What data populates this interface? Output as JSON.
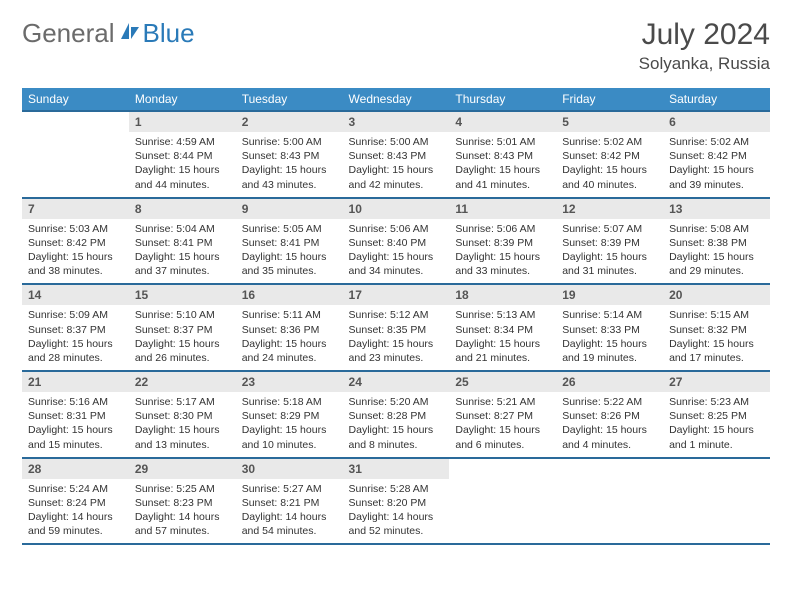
{
  "logo": {
    "word1": "General",
    "word2": "Blue"
  },
  "title": "July 2024",
  "location": "Solyanka, Russia",
  "weekdays": [
    "Sunday",
    "Monday",
    "Tuesday",
    "Wednesday",
    "Thursday",
    "Friday",
    "Saturday"
  ],
  "colors": {
    "header_bg": "#3b8bc4",
    "header_text": "#ffffff",
    "row_border": "#2a6a9a",
    "daynum_bg": "#e9e9e9",
    "logo_grey": "#6b6b6b",
    "logo_blue": "#2a7ab8",
    "text": "#333333"
  },
  "grid": {
    "rows": 5,
    "cols": 7,
    "first_weekday_index": 1,
    "days_in_month": 31
  },
  "days": {
    "1": {
      "sunrise": "4:59 AM",
      "sunset": "8:44 PM",
      "daylight": "15 hours and 44 minutes."
    },
    "2": {
      "sunrise": "5:00 AM",
      "sunset": "8:43 PM",
      "daylight": "15 hours and 43 minutes."
    },
    "3": {
      "sunrise": "5:00 AM",
      "sunset": "8:43 PM",
      "daylight": "15 hours and 42 minutes."
    },
    "4": {
      "sunrise": "5:01 AM",
      "sunset": "8:43 PM",
      "daylight": "15 hours and 41 minutes."
    },
    "5": {
      "sunrise": "5:02 AM",
      "sunset": "8:42 PM",
      "daylight": "15 hours and 40 minutes."
    },
    "6": {
      "sunrise": "5:02 AM",
      "sunset": "8:42 PM",
      "daylight": "15 hours and 39 minutes."
    },
    "7": {
      "sunrise": "5:03 AM",
      "sunset": "8:42 PM",
      "daylight": "15 hours and 38 minutes."
    },
    "8": {
      "sunrise": "5:04 AM",
      "sunset": "8:41 PM",
      "daylight": "15 hours and 37 minutes."
    },
    "9": {
      "sunrise": "5:05 AM",
      "sunset": "8:41 PM",
      "daylight": "15 hours and 35 minutes."
    },
    "10": {
      "sunrise": "5:06 AM",
      "sunset": "8:40 PM",
      "daylight": "15 hours and 34 minutes."
    },
    "11": {
      "sunrise": "5:06 AM",
      "sunset": "8:39 PM",
      "daylight": "15 hours and 33 minutes."
    },
    "12": {
      "sunrise": "5:07 AM",
      "sunset": "8:39 PM",
      "daylight": "15 hours and 31 minutes."
    },
    "13": {
      "sunrise": "5:08 AM",
      "sunset": "8:38 PM",
      "daylight": "15 hours and 29 minutes."
    },
    "14": {
      "sunrise": "5:09 AM",
      "sunset": "8:37 PM",
      "daylight": "15 hours and 28 minutes."
    },
    "15": {
      "sunrise": "5:10 AM",
      "sunset": "8:37 PM",
      "daylight": "15 hours and 26 minutes."
    },
    "16": {
      "sunrise": "5:11 AM",
      "sunset": "8:36 PM",
      "daylight": "15 hours and 24 minutes."
    },
    "17": {
      "sunrise": "5:12 AM",
      "sunset": "8:35 PM",
      "daylight": "15 hours and 23 minutes."
    },
    "18": {
      "sunrise": "5:13 AM",
      "sunset": "8:34 PM",
      "daylight": "15 hours and 21 minutes."
    },
    "19": {
      "sunrise": "5:14 AM",
      "sunset": "8:33 PM",
      "daylight": "15 hours and 19 minutes."
    },
    "20": {
      "sunrise": "5:15 AM",
      "sunset": "8:32 PM",
      "daylight": "15 hours and 17 minutes."
    },
    "21": {
      "sunrise": "5:16 AM",
      "sunset": "8:31 PM",
      "daylight": "15 hours and 15 minutes."
    },
    "22": {
      "sunrise": "5:17 AM",
      "sunset": "8:30 PM",
      "daylight": "15 hours and 13 minutes."
    },
    "23": {
      "sunrise": "5:18 AM",
      "sunset": "8:29 PM",
      "daylight": "15 hours and 10 minutes."
    },
    "24": {
      "sunrise": "5:20 AM",
      "sunset": "8:28 PM",
      "daylight": "15 hours and 8 minutes."
    },
    "25": {
      "sunrise": "5:21 AM",
      "sunset": "8:27 PM",
      "daylight": "15 hours and 6 minutes."
    },
    "26": {
      "sunrise": "5:22 AM",
      "sunset": "8:26 PM",
      "daylight": "15 hours and 4 minutes."
    },
    "27": {
      "sunrise": "5:23 AM",
      "sunset": "8:25 PM",
      "daylight": "15 hours and 1 minute."
    },
    "28": {
      "sunrise": "5:24 AM",
      "sunset": "8:24 PM",
      "daylight": "14 hours and 59 minutes."
    },
    "29": {
      "sunrise": "5:25 AM",
      "sunset": "8:23 PM",
      "daylight": "14 hours and 57 minutes."
    },
    "30": {
      "sunrise": "5:27 AM",
      "sunset": "8:21 PM",
      "daylight": "14 hours and 54 minutes."
    },
    "31": {
      "sunrise": "5:28 AM",
      "sunset": "8:20 PM",
      "daylight": "14 hours and 52 minutes."
    }
  },
  "labels": {
    "sunrise": "Sunrise:",
    "sunset": "Sunset:",
    "daylight": "Daylight:"
  }
}
